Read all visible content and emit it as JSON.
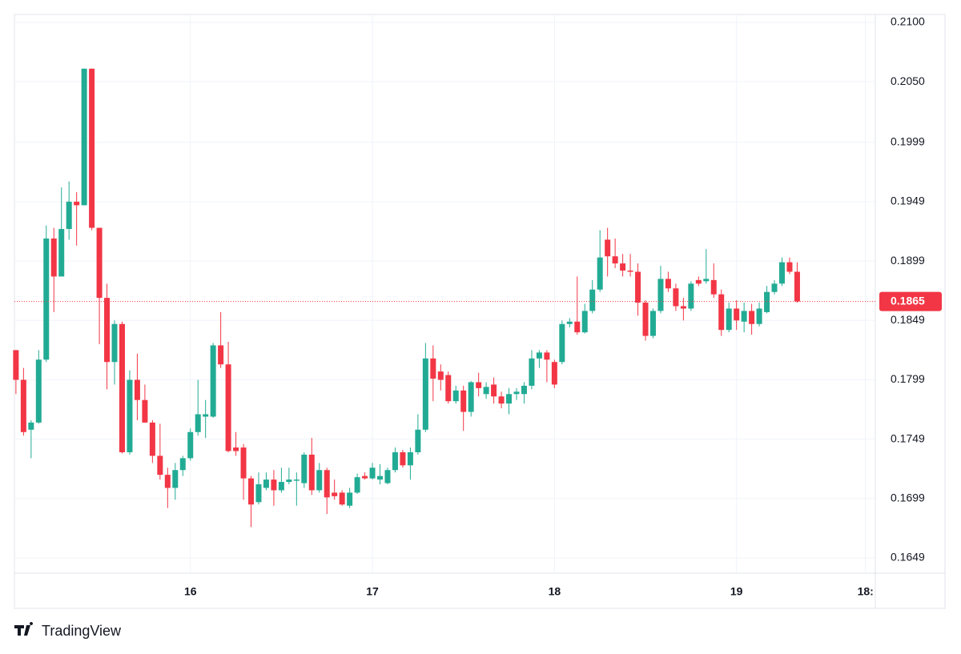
{
  "chart_data": {
    "type": "candlestick",
    "open": [
      0.1824,
      0.1799,
      0.1757,
      0.1763,
      0.1816,
      0.1918,
      0.1886,
      0.1926,
      0.1949,
      0.1946,
      0.2061,
      0.1927,
      0.1868,
      0.1814,
      0.1846,
      0.1738,
      0.1799,
      0.1782,
      0.1763,
      0.1735,
      0.1719,
      0.1708,
      0.1723,
      0.1733,
      0.1755,
      0.1768,
      0.1768,
      0.1828,
      0.1812,
      0.1742,
      0.1742,
      0.1716,
      0.1696,
      0.1708,
      0.1715,
      0.1706,
      0.1713,
      0.1714,
      0.1712,
      0.1736,
      0.1706,
      0.1723,
      0.1704,
      0.1704,
      0.1693,
      0.1704,
      0.1718,
      0.1716,
      0.1715,
      0.1712,
      0.1723,
      0.1738,
      0.1727,
      0.1738,
      0.1757,
      0.1817,
      0.1806,
      0.1803,
      0.1781,
      0.179,
      0.1772,
      0.1797,
      0.1787,
      0.1795,
      0.1785,
      0.1779,
      0.1787,
      0.1787,
      0.1794,
      0.1817,
      0.1822,
      0.1814,
      0.1814,
      0.1846,
      0.1848,
      0.1839,
      0.1857,
      0.1875,
      0.1917,
      0.1903,
      0.1897,
      0.1891,
      0.189,
      0.1864,
      0.1836,
      0.1857,
      0.1884,
      0.1876,
      0.1861,
      0.1859,
      0.1883,
      0.1882,
      0.1883,
      0.1871,
      0.1841,
      0.1859,
      0.1848,
      0.1857,
      0.1846,
      0.1856,
      0.1873,
      0.188,
      0.1898,
      0.189
    ],
    "high": [
      0.1824,
      0.1809,
      0.1765,
      0.1824,
      0.1929,
      0.1927,
      0.1961,
      0.1966,
      0.1957,
      0.2061,
      0.2061,
      0.1927,
      0.188,
      0.1849,
      0.1848,
      0.1807,
      0.1821,
      0.1795,
      0.1765,
      0.1762,
      0.1725,
      0.1729,
      0.1735,
      0.1758,
      0.1799,
      0.1782,
      0.183,
      0.1856,
      0.1831,
      0.1755,
      0.1745,
      0.1718,
      0.1721,
      0.1721,
      0.1723,
      0.1725,
      0.1725,
      0.1721,
      0.1738,
      0.175,
      0.1729,
      0.1725,
      0.1715,
      0.1706,
      0.1708,
      0.172,
      0.1721,
      0.1729,
      0.1728,
      0.1725,
      0.1742,
      0.174,
      0.1742,
      0.177,
      0.183,
      0.1828,
      0.1812,
      0.1806,
      0.1794,
      0.1794,
      0.1798,
      0.1805,
      0.1797,
      0.1801,
      0.1789,
      0.1792,
      0.1792,
      0.1797,
      0.1824,
      0.1824,
      0.1824,
      0.1816,
      0.1849,
      0.1851,
      0.1886,
      0.1863,
      0.1883,
      0.1925,
      0.1927,
      0.1918,
      0.1905,
      0.1905,
      0.1897,
      0.1866,
      0.1859,
      0.1895,
      0.189,
      0.188,
      0.1868,
      0.1882,
      0.1886,
      0.1909,
      0.1897,
      0.1875,
      0.1864,
      0.1866,
      0.1864,
      0.1863,
      0.1864,
      0.1878,
      0.1883,
      0.1902,
      0.1902,
      0.1898
    ],
    "low": [
      0.1787,
      0.1752,
      0.1733,
      0.1762,
      0.1814,
      0.1856,
      0.1886,
      0.1917,
      0.1912,
      0.1946,
      0.1925,
      0.1829,
      0.1791,
      0.1795,
      0.1737,
      0.1736,
      0.1765,
      0.1763,
      0.1729,
      0.1715,
      0.1691,
      0.1698,
      0.1718,
      0.1731,
      0.1752,
      0.175,
      0.1767,
      0.1809,
      0.1738,
      0.1735,
      0.1698,
      0.1675,
      0.1694,
      0.1706,
      0.1693,
      0.1704,
      0.1711,
      0.1693,
      0.1708,
      0.1702,
      0.1704,
      0.1686,
      0.1698,
      0.1693,
      0.1691,
      0.1703,
      0.1715,
      0.1715,
      0.1711,
      0.1711,
      0.1721,
      0.1725,
      0.1715,
      0.1736,
      0.1755,
      0.1781,
      0.179,
      0.1779,
      0.1779,
      0.1756,
      0.1768,
      0.1785,
      0.1783,
      0.1779,
      0.1775,
      0.177,
      0.1782,
      0.1779,
      0.1791,
      0.1809,
      0.1797,
      0.1792,
      0.1812,
      0.1843,
      0.1837,
      0.1838,
      0.1855,
      0.1873,
      0.1886,
      0.1893,
      0.1886,
      0.1886,
      0.1853,
      0.1832,
      0.1834,
      0.1855,
      0.1873,
      0.1857,
      0.1849,
      0.1857,
      0.1878,
      0.188,
      0.1868,
      0.1836,
      0.1839,
      0.1841,
      0.1839,
      0.1837,
      0.1844,
      0.1855,
      0.1871,
      0.1878,
      0.1888,
      0.1864
    ],
    "close": [
      0.1799,
      0.1755,
      0.1763,
      0.1816,
      0.1918,
      0.1886,
      0.1926,
      0.1949,
      0.1946,
      0.2061,
      0.1927,
      0.1868,
      0.1814,
      0.1846,
      0.1738,
      0.1799,
      0.1782,
      0.1763,
      0.1735,
      0.1719,
      0.1708,
      0.1723,
      0.1733,
      0.1755,
      0.177,
      0.177,
      0.1828,
      0.1812,
      0.1739,
      0.1739,
      0.1716,
      0.1694,
      0.1711,
      0.1715,
      0.1706,
      0.1713,
      0.1715,
      0.1715,
      0.1736,
      0.1706,
      0.1723,
      0.17,
      0.1701,
      0.1694,
      0.1704,
      0.1717,
      0.1716,
      0.1725,
      0.1718,
      0.1723,
      0.1738,
      0.1727,
      0.1738,
      0.1757,
      0.1817,
      0.18,
      0.1799,
      0.1781,
      0.179,
      0.1772,
      0.1797,
      0.1792,
      0.1793,
      0.1785,
      0.1779,
      0.1787,
      0.1789,
      0.1794,
      0.1817,
      0.1822,
      0.1816,
      0.1795,
      0.1846,
      0.1848,
      0.1839,
      0.1857,
      0.1875,
      0.1902,
      0.1903,
      0.1897,
      0.1891,
      0.189,
      0.1864,
      0.1836,
      0.1857,
      0.1884,
      0.1876,
      0.1861,
      0.1859,
      0.188,
      0.188,
      0.1884,
      0.1871,
      0.1841,
      0.1859,
      0.1849,
      0.1857,
      0.1846,
      0.1859,
      0.1873,
      0.188,
      0.1898,
      0.189,
      0.1865
    ],
    "up_color": "#22ab94",
    "down_color": "#f23645",
    "ylim": [
      0.16362,
      0.21067
    ],
    "yticks": [
      {
        "value": 0.21,
        "label": "0.2100"
      },
      {
        "value": 0.205,
        "label": "0.2050"
      },
      0.1999,
      0.1949,
      0.1899,
      0.1849,
      0.1799,
      0.1749,
      0.1699,
      0.1649
    ],
    "xlim": [
      -0.2,
      113.3
    ],
    "xticks": [
      {
        "value": 23,
        "label": "16"
      },
      {
        "value": 47,
        "label": "17"
      },
      {
        "value": 71,
        "label": "18"
      },
      {
        "value": 95,
        "label": "19"
      },
      {
        "value": 112,
        "label": "18:"
      }
    ],
    "last_price": 0.1865,
    "grid": true,
    "brand": "TradingView"
  }
}
